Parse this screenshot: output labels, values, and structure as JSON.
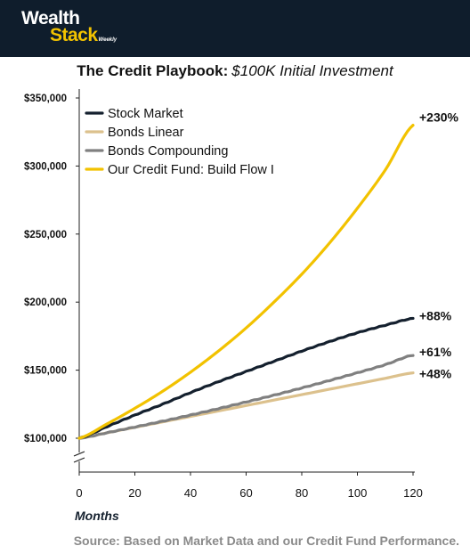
{
  "brand": {
    "word1": "Wealth",
    "word2": "Stack",
    "word3": "Weekly",
    "accent": "#f2c200",
    "navy": "#0f1d2c"
  },
  "title": {
    "main": "The Credit Playbook:",
    "sub": "$100K Initial Investment"
  },
  "source": "Source: Based on Market Data and our Credit Fund Performance.",
  "chart_data": {
    "type": "line",
    "xlabel": "Months",
    "ylabel": "",
    "xlim": [
      0,
      120
    ],
    "ylim": [
      100000,
      350000
    ],
    "axis_break": true,
    "xticks": [
      0,
      20,
      40,
      60,
      80,
      100,
      120
    ],
    "yticks": [
      100000,
      150000,
      200000,
      250000,
      300000,
      350000
    ],
    "ytick_labels": [
      "$100,000",
      "$150,000",
      "$200,000",
      "$250,000",
      "$300,000",
      "$350,000"
    ],
    "grid": false,
    "legend_position": "top-left",
    "x": [
      0,
      10,
      20,
      30,
      40,
      50,
      60,
      70,
      80,
      90,
      100,
      110,
      120
    ],
    "series": [
      {
        "name": "Stock Market",
        "color": "#14202e",
        "end_label": "+88%",
        "values": [
          100000,
          108500,
          117000,
          125000,
          133500,
          141500,
          149000,
          156500,
          164000,
          171000,
          177500,
          183000,
          188000
        ]
      },
      {
        "name": "Bonds Linear",
        "color": "#dcc18d",
        "end_label": "+48%",
        "values": [
          100000,
          104000,
          108000,
          112000,
          116000,
          120000,
          124000,
          128000,
          132000,
          136000,
          140000,
          144000,
          148000
        ]
      },
      {
        "name": "Bonds Compounding",
        "color": "#808080",
        "end_label": "+61%",
        "values": [
          100000,
          104000,
          108200,
          112500,
          117000,
          121700,
          126600,
          131600,
          136900,
          142400,
          148100,
          154000,
          161000
        ]
      },
      {
        "name": "Our Credit Fund: Build Flow I",
        "color": "#f2c200",
        "end_label": "+230%",
        "values": [
          100000,
          110500,
          122000,
          134500,
          148500,
          164000,
          181000,
          200000,
          220500,
          243500,
          269000,
          297000,
          330000
        ]
      }
    ]
  }
}
